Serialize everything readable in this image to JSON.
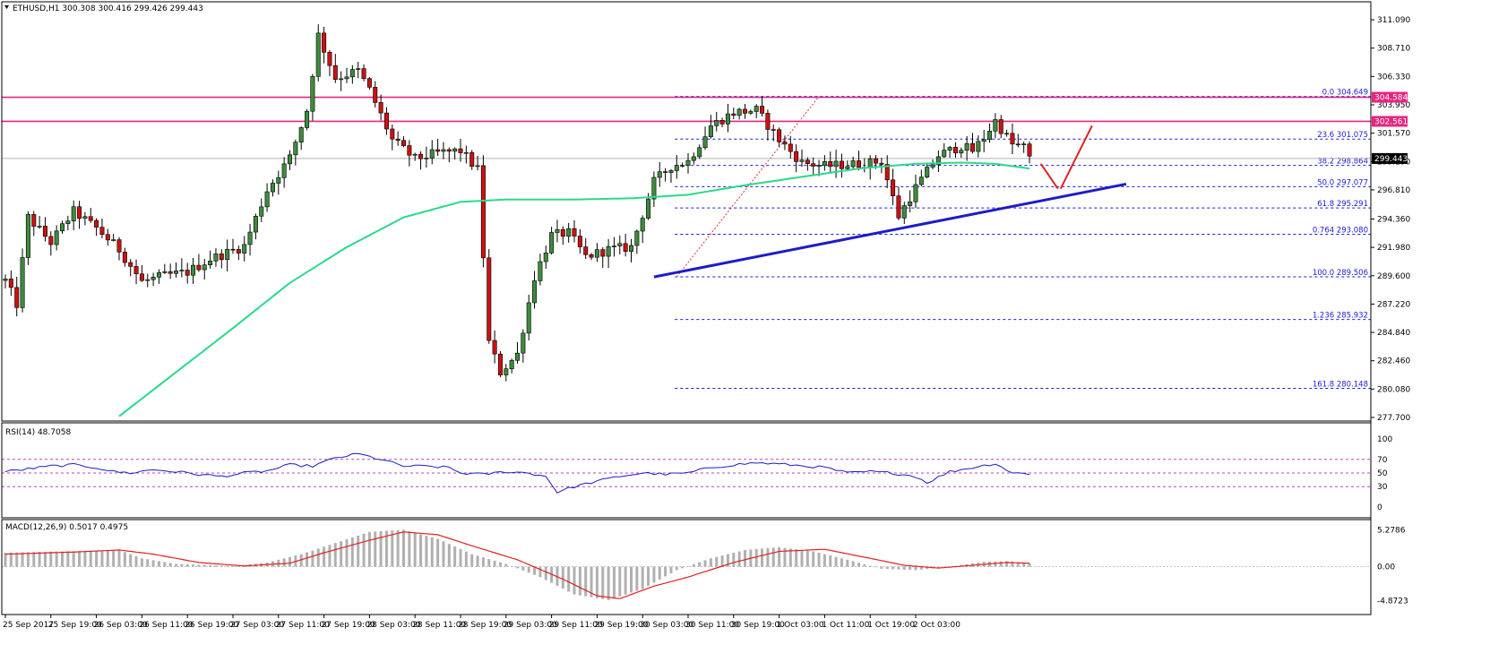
{
  "chart_data": {
    "type": "candlestick",
    "title": "ETHUSD,H1",
    "ohlc_label": {
      "open": "300.308",
      "high": "300.416",
      "low": "299.426",
      "close": "299.443"
    },
    "price_axis_ticks": [
      "311.090",
      "308.710",
      "306.330",
      "303.950",
      "301.570",
      "299.190",
      "296.810",
      "294.360",
      "291.980",
      "289.600",
      "287.220",
      "284.840",
      "282.460",
      "280.080",
      "277.700"
    ],
    "ylim": [
      277.4,
      312.6
    ],
    "time_axis_labels": [
      "25 Sep 2017",
      "25 Sep 19:00",
      "26 Sep 03:00",
      "26 Sep 11:00",
      "26 Sep 19:00",
      "27 Sep 03:00",
      "27 Sep 11:00",
      "27 Sep 19:00",
      "28 Sep 03:00",
      "28 Sep 11:00",
      "28 Sep 19:00",
      "29 Sep 03:00",
      "29 Sep 11:00",
      "29 Sep 19:00",
      "30 Sep 03:00",
      "30 Sep 11:00",
      "30 Sep 19:00",
      "1 Oct 03:00",
      "1 Oct 11:00",
      "1 Oct 19:00",
      "2 Oct 03:00"
    ],
    "bars_per_label": 8,
    "colors": {
      "bull": "#3d8b3d",
      "bear": "#cc1111",
      "wick": "#000000",
      "ma": "#29d98a",
      "trend": "#1c1cc8",
      "hline": "#e8257f",
      "fib": "#1a1ae0",
      "macd_hist": "#b0b0b0",
      "macd_signal": "#e02020",
      "rsi": "#1c1cc8"
    },
    "anchors": [
      [
        0,
        289.2
      ],
      [
        2,
        287.2
      ],
      [
        4,
        294.5
      ],
      [
        8,
        292.4
      ],
      [
        12,
        295.0
      ],
      [
        16,
        293.6
      ],
      [
        20,
        291.8
      ],
      [
        24,
        289.1
      ],
      [
        28,
        289.6
      ],
      [
        32,
        289.9
      ],
      [
        36,
        291.0
      ],
      [
        42,
        292.1
      ],
      [
        46,
        296.8
      ],
      [
        50,
        299.5
      ],
      [
        53,
        303.5
      ],
      [
        55,
        309.8
      ],
      [
        58,
        306.2
      ],
      [
        62,
        306.8
      ],
      [
        64,
        305.2
      ],
      [
        68,
        301.0
      ],
      [
        72,
        299.4
      ],
      [
        76,
        299.9
      ],
      [
        80,
        300.1
      ],
      [
        83,
        298.5
      ],
      [
        85,
        284.0
      ],
      [
        87,
        281.5
      ],
      [
        90,
        283.0
      ],
      [
        93,
        289.5
      ],
      [
        96,
        293.0
      ],
      [
        99,
        293.2
      ],
      [
        102,
        291.2
      ],
      [
        106,
        291.8
      ],
      [
        110,
        292.0
      ],
      [
        114,
        297.5
      ],
      [
        117,
        298.8
      ],
      [
        120,
        299.2
      ],
      [
        124,
        302.2
      ],
      [
        128,
        303.3
      ],
      [
        132,
        303.5
      ],
      [
        136,
        301.0
      ],
      [
        140,
        299.1
      ],
      [
        144,
        298.8
      ],
      [
        150,
        299.0
      ],
      [
        154,
        299.2
      ],
      [
        157,
        294.6
      ],
      [
        160,
        297.0
      ],
      [
        164,
        299.7
      ],
      [
        168,
        300.5
      ],
      [
        170,
        300.1
      ],
      [
        172,
        301.2
      ],
      [
        174,
        302.6
      ],
      [
        177,
        300.6
      ],
      [
        179,
        300.4
      ],
      [
        180,
        299.4
      ]
    ],
    "ma_points": [
      [
        20,
        277.8
      ],
      [
        30,
        281.5
      ],
      [
        40,
        285.2
      ],
      [
        50,
        289.0
      ],
      [
        60,
        292.0
      ],
      [
        70,
        294.5
      ],
      [
        80,
        295.8
      ],
      [
        88,
        296.0
      ],
      [
        100,
        296.0
      ],
      [
        110,
        296.1
      ],
      [
        120,
        296.4
      ],
      [
        130,
        297.2
      ],
      [
        140,
        297.9
      ],
      [
        150,
        298.6
      ],
      [
        160,
        299.0
      ],
      [
        168,
        299.1
      ],
      [
        174,
        299.0
      ],
      [
        180,
        298.6
      ]
    ],
    "fibonacci": [
      {
        "label": "0.0",
        "value": "304.649"
      },
      {
        "label": "23.6",
        "value": "301.075"
      },
      {
        "label": "38.2",
        "value": "298.864"
      },
      {
        "label": "50.0",
        "value": "297.077"
      },
      {
        "label": "61.8",
        "value": "295.291"
      },
      {
        "label": "0.764",
        "value": "293.080"
      },
      {
        "label": "100.0",
        "value": "289.506"
      },
      {
        "label": "1.236",
        "value": "285.932"
      },
      {
        "label": "161.8",
        "value": "280.148"
      }
    ],
    "horizontal_lines": [
      {
        "label": "304.584",
        "value": 304.584
      },
      {
        "label": "302.561",
        "value": 302.561
      }
    ],
    "current_price": {
      "label": "299.443",
      "value": 299.443
    },
    "trendline": {
      "x1": 114,
      "y1": 289.5,
      "x2": 197,
      "y2": 297.3
    },
    "fib_swing": {
      "x1": 118,
      "y1": 289.5,
      "x2": 143,
      "y2": 304.65
    },
    "projection": [
      [
        182,
        299.0
      ],
      [
        185,
        296.9
      ],
      [
        191,
        302.2
      ]
    ],
    "rsi": {
      "label": "RSI(14) 48.7058",
      "ticks": [
        "100",
        "70",
        "50",
        "30",
        "0"
      ],
      "levels": [
        70,
        50,
        30
      ],
      "anchors": [
        [
          0,
          52
        ],
        [
          3,
          55
        ],
        [
          8,
          60
        ],
        [
          12,
          62
        ],
        [
          16,
          58
        ],
        [
          19,
          52
        ],
        [
          22,
          50
        ],
        [
          26,
          55
        ],
        [
          30,
          52
        ],
        [
          34,
          48
        ],
        [
          38,
          45
        ],
        [
          42,
          50
        ],
        [
          46,
          53
        ],
        [
          50,
          62
        ],
        [
          54,
          60
        ],
        [
          58,
          72
        ],
        [
          62,
          78
        ],
        [
          66,
          70
        ],
        [
          70,
          60
        ],
        [
          74,
          60
        ],
        [
          78,
          58
        ],
        [
          80,
          50
        ],
        [
          84,
          48
        ],
        [
          88,
          52
        ],
        [
          92,
          50
        ],
        [
          95,
          45
        ],
        [
          97,
          22
        ],
        [
          100,
          30
        ],
        [
          104,
          38
        ],
        [
          108,
          45
        ],
        [
          112,
          50
        ],
        [
          116,
          48
        ],
        [
          120,
          50
        ],
        [
          124,
          58
        ],
        [
          128,
          62
        ],
        [
          132,
          65
        ],
        [
          138,
          62
        ],
        [
          144,
          58
        ],
        [
          148,
          50
        ],
        [
          152,
          52
        ],
        [
          156,
          50
        ],
        [
          160,
          45
        ],
        [
          162,
          36
        ],
        [
          166,
          52
        ],
        [
          170,
          58
        ],
        [
          174,
          64
        ],
        [
          177,
          50
        ],
        [
          180,
          49
        ]
      ]
    },
    "macd": {
      "label": "MACD(12,26,9) 0.5017 0.4975",
      "ticks": [
        "5.2786",
        "0.00",
        "-4.8723"
      ],
      "ylim": [
        -5.6,
        6.0
      ],
      "hist": [
        [
          0,
          2.0
        ],
        [
          10,
          2.2
        ],
        [
          20,
          2.4
        ],
        [
          24,
          1.2
        ],
        [
          30,
          0.4
        ],
        [
          40,
          0.1
        ],
        [
          46,
          0.6
        ],
        [
          52,
          1.8
        ],
        [
          58,
          3.4
        ],
        [
          64,
          5.0
        ],
        [
          70,
          5.3
        ],
        [
          76,
          4.0
        ],
        [
          82,
          1.8
        ],
        [
          88,
          0.4
        ],
        [
          94,
          -1.5
        ],
        [
          100,
          -4.0
        ],
        [
          106,
          -4.8
        ],
        [
          112,
          -3.2
        ],
        [
          118,
          -0.5
        ],
        [
          124,
          1.2
        ],
        [
          130,
          2.4
        ],
        [
          136,
          2.8
        ],
        [
          142,
          2.2
        ],
        [
          148,
          1.0
        ],
        [
          154,
          -0.3
        ],
        [
          160,
          -0.5
        ],
        [
          166,
          0.0
        ],
        [
          172,
          0.7
        ],
        [
          176,
          0.8
        ],
        [
          180,
          0.5
        ]
      ],
      "signal": [
        [
          0,
          1.8
        ],
        [
          12,
          2.1
        ],
        [
          20,
          2.4
        ],
        [
          26,
          1.8
        ],
        [
          34,
          0.6
        ],
        [
          42,
          0.1
        ],
        [
          50,
          0.5
        ],
        [
          56,
          2.0
        ],
        [
          64,
          3.8
        ],
        [
          70,
          5.0
        ],
        [
          76,
          4.6
        ],
        [
          82,
          3.0
        ],
        [
          90,
          1.0
        ],
        [
          98,
          -1.8
        ],
        [
          104,
          -4.2
        ],
        [
          108,
          -4.6
        ],
        [
          114,
          -2.8
        ],
        [
          120,
          -1.5
        ],
        [
          128,
          0.6
        ],
        [
          136,
          2.2
        ],
        [
          144,
          2.5
        ],
        [
          152,
          1.2
        ],
        [
          158,
          0.2
        ],
        [
          164,
          -0.2
        ],
        [
          170,
          0.2
        ],
        [
          176,
          0.6
        ],
        [
          180,
          0.5
        ]
      ]
    }
  }
}
